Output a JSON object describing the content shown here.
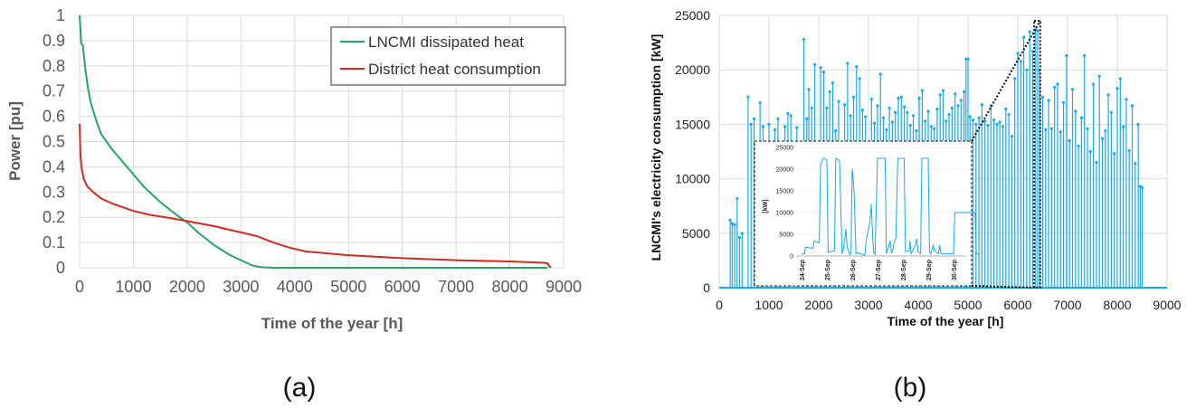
{
  "colors": {
    "green": "#27a363",
    "red": "#cc2c22",
    "blue": "#19a9e6",
    "grid": "#d9d9d9"
  },
  "panel_a": {
    "label": "(a)"
  },
  "panel_b": {
    "label": "(b)"
  },
  "chart_data": [
    {
      "type": "line",
      "xlabel": "Time of the year [h]",
      "ylabel": "Power [pu]",
      "xlim": [
        0,
        9000
      ],
      "ylim": [
        0,
        1
      ],
      "x_ticks": [
        "0",
        "1000",
        "2000",
        "3000",
        "4000",
        "5000",
        "6000",
        "7000",
        "8000",
        "9000"
      ],
      "y_ticks": [
        "0",
        "0.1",
        "0.2",
        "0.3",
        "0.4",
        "0.5",
        "0.6",
        "0.7",
        "0.8",
        "0.9",
        "1"
      ],
      "grid": true,
      "legend": "top-right",
      "series": [
        {
          "name": "LNCMI dissipated heat",
          "x": [
            0,
            30,
            60,
            100,
            150,
            200,
            300,
            400,
            500,
            600,
            800,
            1000,
            1200,
            1500,
            1800,
            2000,
            2200,
            2500,
            2800,
            3000,
            3200,
            3300,
            3400,
            3600,
            4000,
            5000,
            6000,
            7000,
            8000,
            8700
          ],
          "y": [
            1.0,
            0.89,
            0.88,
            0.8,
            0.72,
            0.66,
            0.59,
            0.53,
            0.5,
            0.47,
            0.42,
            0.37,
            0.32,
            0.26,
            0.21,
            0.18,
            0.14,
            0.09,
            0.05,
            0.03,
            0.01,
            0.005,
            0.002,
            0,
            0,
            0,
            0,
            0,
            0,
            0
          ]
        },
        {
          "name": "District heat consumption",
          "x": [
            0,
            15,
            40,
            80,
            150,
            250,
            400,
            600,
            800,
            1000,
            1300,
            1600,
            2000,
            2500,
            3000,
            3300,
            3600,
            3900,
            4200,
            5000,
            6000,
            7000,
            8000,
            8600,
            8700,
            8720,
            8760
          ],
          "y": [
            0.57,
            0.45,
            0.39,
            0.35,
            0.32,
            0.3,
            0.275,
            0.255,
            0.24,
            0.225,
            0.21,
            0.2,
            0.185,
            0.165,
            0.14,
            0.125,
            0.1,
            0.08,
            0.065,
            0.05,
            0.038,
            0.03,
            0.025,
            0.02,
            0.018,
            0.01,
            0
          ]
        }
      ]
    },
    {
      "type": "line",
      "xlabel": "Time of the year [h]",
      "ylabel": "LNCMI's electricity consumption [kW]",
      "xlim": [
        0,
        9000
      ],
      "ylim": [
        0,
        25000
      ],
      "x_ticks": [
        "0",
        "1000",
        "2000",
        "3000",
        "4000",
        "5000",
        "6000",
        "7000",
        "8000",
        "9000"
      ],
      "y_ticks": [
        "0",
        "5000",
        "10000",
        "15000",
        "20000",
        "25000"
      ],
      "grid": true,
      "series": [
        {
          "x": [
            0,
            220,
            260,
            310,
            360,
            410,
            460,
            520,
            580,
            640,
            700,
            760,
            820,
            880,
            940,
            1000,
            1060,
            1120,
            1180,
            1250,
            1320,
            1380,
            1440,
            1500,
            1560,
            1620,
            1700,
            1760,
            1800,
            1860,
            1920,
            1980,
            2040,
            2100,
            2160,
            2220,
            2280,
            2340,
            2400,
            2460,
            2520,
            2580,
            2640,
            2700,
            2760,
            2820,
            2880,
            2940,
            3000,
            3060,
            3120,
            3180,
            3240,
            3300,
            3360,
            3420,
            3480,
            3540,
            3600,
            3660,
            3720,
            3780,
            3840,
            3900,
            3960,
            4020,
            4080,
            4140,
            4200,
            4260,
            4320,
            4380,
            4440,
            4500,
            4560,
            4620,
            4680,
            4740,
            4800,
            4860,
            4920,
            4960,
            5000,
            5040,
            5100,
            5160,
            5220,
            5280,
            5340,
            5400,
            5460,
            5520,
            5580,
            5640,
            5700,
            5760,
            5820,
            5880,
            5940,
            6000,
            6060,
            6120,
            6180,
            6240,
            6300,
            6360,
            6400,
            6440,
            6500,
            6560,
            6620,
            6680,
            6740,
            6800,
            6860,
            6920,
            6980,
            7040,
            7100,
            7160,
            7220,
            7280,
            7340,
            7400,
            7460,
            7520,
            7580,
            7640,
            7700,
            7760,
            7820,
            7880,
            7940,
            8000,
            8060,
            8120,
            8180,
            8240,
            8300,
            8360,
            8420,
            8460,
            8500,
            8760
          ],
          "y": [
            0,
            6200,
            5900,
            5800,
            8200,
            4600,
            5000,
            0,
            17500,
            15000,
            15500,
            0,
            17000,
            14800,
            0,
            15000,
            0,
            14500,
            15500,
            0,
            14800,
            16000,
            15800,
            0,
            14700,
            0,
            22800,
            15500,
            18200,
            16500,
            20500,
            0,
            20200,
            19800,
            16500,
            18000,
            18800,
            14400,
            17100,
            0,
            16800,
            20600,
            15800,
            17500,
            20300,
            19200,
            16300,
            15700,
            0,
            17300,
            15100,
            16700,
            19600,
            15600,
            14500,
            16500,
            15200,
            16100,
            17400,
            17500,
            16600,
            16100,
            14900,
            15800,
            14400,
            17400,
            18100,
            15300,
            16200,
            14800,
            14600,
            16400,
            17700,
            18100,
            15300,
            15900,
            16500,
            17800,
            16700,
            17200,
            18000,
            21000,
            21000,
            15700,
            15400,
            15000,
            15600,
            16800,
            15300,
            14900,
            16700,
            15400,
            15000,
            15200,
            14800,
            16400,
            15900,
            13900,
            19200,
            21500,
            20800,
            23000,
            20000,
            23500,
            21700,
            23700,
            23600,
            20000,
            17500,
            14500,
            17200,
            14600,
            18400,
            18700,
            14300,
            17000,
            21300,
            13500,
            18200,
            16200,
            13000,
            15600,
            21300,
            14600,
            12500,
            18700,
            11500,
            19400,
            13700,
            14400,
            17700,
            16100,
            12300,
            18300,
            19200,
            14800,
            17300,
            12600,
            16700,
            11400,
            15000,
            9300,
            9200,
            0
          ]
        }
      ],
      "inset": {
        "ylabel": "[kW]",
        "ylim": [
          0,
          25000
        ],
        "y_ticks": [
          "0",
          "5000",
          "10000",
          "15000",
          "20000",
          "25000"
        ],
        "x_ticks": [
          "24-Sep",
          "25-Sep",
          "26-Sep",
          "27-Sep",
          "28-Sep",
          "29-Sep",
          "30-Sep"
        ],
        "series": [
          {
            "x": [
              0,
              0.12,
              0.15,
              0.45,
              0.5,
              0.7,
              0.75,
              0.85,
              0.9,
              1.0,
              1.05,
              1.3,
              1.35,
              1.5,
              1.52,
              1.6,
              1.65,
              1.72,
              1.75,
              1.8,
              1.9,
              1.95,
              2.0,
              2.03,
              2.08,
              2.15,
              2.2,
              2.5,
              2.55,
              2.7,
              2.75,
              2.82,
              2.85,
              2.9,
              3.0,
              3.05,
              3.3,
              3.35,
              3.5,
              3.55,
              3.62,
              3.65,
              3.72,
              3.8,
              3.85,
              4.05,
              4.1,
              4.25,
              4.28,
              4.32,
              4.5,
              4.55,
              4.6,
              4.7,
              4.75,
              4.8,
              5.0,
              5.05,
              5.1,
              5.2,
              5.25,
              5.4,
              5.45,
              5.5,
              6.0,
              6.05,
              6.5,
              6.55,
              6.85,
              6.9,
              7.0
            ],
            "y": [
              500,
              500,
              2000,
              1800,
              3500,
              3000,
              21000,
              22500,
              22500,
              22000,
              900,
              1200,
              22500,
              22000,
              17000,
              500,
              1500,
              4500,
              6200,
              2000,
              300,
              500,
              20000,
              18500,
              14000,
              500,
              700,
              200,
              3500,
              8000,
              12000,
              3000,
              800,
              400,
              22500,
              22500,
              22500,
              500,
              3500,
              600,
              1800,
              3000,
              4000,
              22500,
              22500,
              22500,
              1000,
              1200,
              3500,
              500,
              2500,
              4000,
              1000,
              500,
              22500,
              22500,
              22500,
              1000,
              500,
              2500,
              1200,
              500,
              2500,
              500,
              500,
              10000,
              10000,
              10000,
              10000,
              500,
              500
            ]
          }
        ]
      }
    }
  ]
}
